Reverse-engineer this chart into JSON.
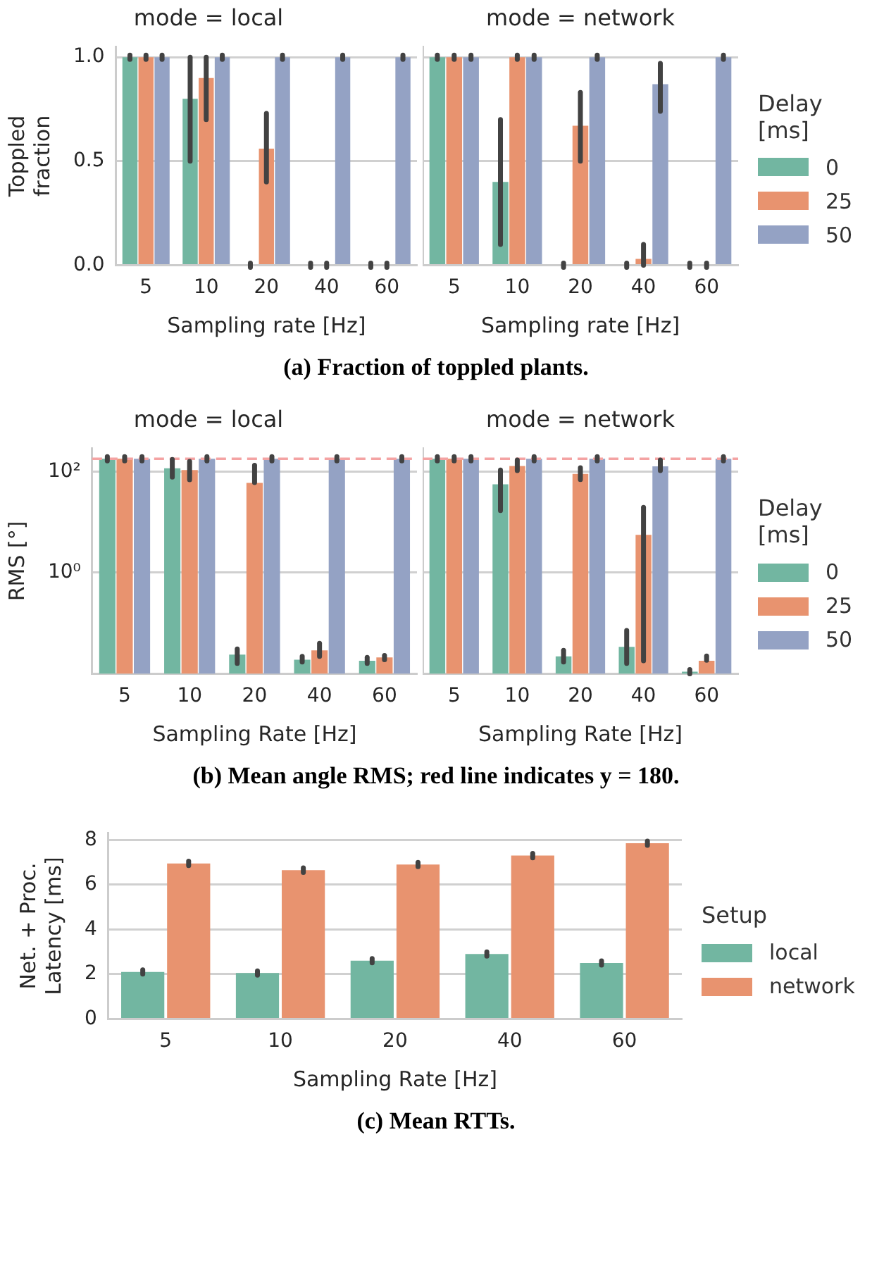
{
  "chart_data": [
    {
      "type": "bar",
      "title": "mode = local",
      "xlabel": "Sampling rate [Hz]",
      "ylabel": "Toppled fraction",
      "categories": [
        "5",
        "10",
        "20",
        "40",
        "60"
      ],
      "ylim": [
        0,
        1.05
      ],
      "yticks": [
        {
          "value": 0,
          "label": "0.0"
        },
        0.5,
        {
          "value": 1,
          "label": "1.0"
        }
      ],
      "grid": "y",
      "series": [
        {
          "color": "#72b6a1",
          "values": [
            1,
            0.8,
            0,
            0,
            0
          ],
          "errors": [
            0,
            [
              0.5,
              1
            ],
            0,
            0,
            0
          ]
        },
        {
          "color": "#e8936f",
          "values": [
            1,
            0.9,
            0.56,
            0,
            0
          ],
          "errors": [
            0,
            [
              0.7,
              1
            ],
            [
              0.4,
              0.73
            ],
            0,
            0
          ]
        },
        {
          "color": "#94a2c4",
          "values": [
            1,
            1,
            1,
            1,
            1
          ],
          "errors": [
            0,
            0,
            0,
            0,
            0
          ]
        }
      ],
      "annotations": [
        "(a) Fraction of toppled plants."
      ]
    },
    {
      "type": "bar",
      "title": "mode = network",
      "xlabel": "Sampling rate [Hz]",
      "categories": [
        "5",
        "10",
        "20",
        "40",
        "60"
      ],
      "ylim": [
        0,
        1.05
      ],
      "yticks": [
        {
          "value": 0,
          "label": null
        },
        {
          "value": 0.5,
          "label": null
        },
        {
          "value": 1,
          "label": null
        }
      ],
      "grid": "y",
      "tick_labels": "x",
      "legend": "right",
      "legend_title": "Delay [ms]",
      "series": [
        {
          "name": "0",
          "color": "#72b6a1",
          "values": [
            1,
            0.4,
            0,
            0,
            0
          ],
          "errors": [
            0,
            [
              0.1,
              0.7
            ],
            0,
            0,
            0
          ]
        },
        {
          "name": "25",
          "color": "#e8936f",
          "values": [
            1,
            1,
            0.67,
            0.03,
            0
          ],
          "errors": [
            0,
            0,
            [
              0.5,
              0.83
            ],
            [
              0,
              0.1
            ],
            0
          ]
        },
        {
          "name": "50",
          "color": "#94a2c4",
          "values": [
            1,
            1,
            1,
            0.87,
            1
          ],
          "errors": [
            0,
            0,
            0,
            [
              0.74,
              0.97
            ],
            0
          ]
        }
      ]
    },
    {
      "type": "bar",
      "title": "mode = local",
      "xlabel": "Sampling Rate [Hz]",
      "ylabel": "RMS [°]",
      "categories": [
        "5",
        "10",
        "20",
        "40",
        "60"
      ],
      "log": "y",
      "ylim": [
        0.01,
        290
      ],
      "yticks": [
        {
          "value": 1,
          "label": "10⁰"
        },
        {
          "value": 100,
          "label": "10²"
        }
      ],
      "grid": "y",
      "ref_lines": [
        {
          "axis": "y",
          "value": 180,
          "color": "#f4a3a3",
          "line_style": "dashed"
        }
      ],
      "series": [
        {
          "color": "#72b6a1",
          "values": [
            180,
            117,
            0.024,
            0.019,
            0.018
          ],
          "errors": [
            0,
            [
              78,
              174
            ],
            [
              0.016,
              0.031
            ],
            [
              0.017,
              0.022
            ],
            [
              0.016,
              0.021
            ]
          ]
        },
        {
          "color": "#e8936f",
          "values": [
            180,
            108,
            60,
            0.029,
            0.021
          ],
          "errors": [
            0,
            [
              69,
              160
            ],
            [
              61,
              134
            ],
            [
              0.022,
              0.04
            ],
            [
              0.019,
              0.023
            ]
          ]
        },
        {
          "color": "#94a2c4",
          "values": [
            180,
            180,
            180,
            180,
            180
          ],
          "errors": [
            0,
            0,
            0,
            0,
            0
          ]
        }
      ],
      "annotations": [
        "(b) Mean angle RMS; red line indicates y = 180."
      ]
    },
    {
      "type": "bar",
      "title": "mode = network",
      "xlabel": "Sampling Rate [Hz]",
      "categories": [
        "5",
        "10",
        "20",
        "40",
        "60"
      ],
      "log": "y",
      "ylim": [
        0.01,
        290
      ],
      "yticks": [
        {
          "value": 1,
          "label": null
        },
        {
          "value": 100,
          "label": null
        }
      ],
      "grid": "y",
      "tick_labels": "x",
      "legend": "right",
      "legend_title": "Delay [ms]",
      "ref_lines": [
        {
          "axis": "y",
          "value": 180,
          "color": "#f4a3a3",
          "line_style": "dashed"
        }
      ],
      "series": [
        {
          "name": "0",
          "color": "#72b6a1",
          "values": [
            180,
            56,
            0.022,
            0.034,
            0.011
          ],
          "errors": [
            0,
            [
              17,
              108
            ],
            [
              0.017,
              0.029
            ],
            [
              0.016,
              0.072
            ],
            0
          ]
        },
        {
          "name": "25",
          "color": "#e8936f",
          "values": [
            180,
            130,
            90,
            5.6,
            0.018
          ],
          "errors": [
            0,
            [
              105,
              170
            ],
            [
              70,
              120
            ],
            [
              0.018,
              19.6
            ],
            [
              0.019,
              0.022
            ]
          ]
        },
        {
          "name": "50",
          "color": "#94a2c4",
          "values": [
            180,
            180,
            180,
            127,
            180
          ],
          "errors": [
            0,
            0,
            0,
            [
              105,
              170
            ],
            0
          ]
        }
      ]
    },
    {
      "type": "bar",
      "xlabel": "Sampling Rate [Hz]",
      "ylabel": "Net. + Proc. Latency [ms]",
      "categories": [
        "5",
        "10",
        "20",
        "40",
        "60"
      ],
      "ylim": [
        0,
        8.3
      ],
      "yticks": [
        0,
        2,
        4,
        6,
        8
      ],
      "grid": "y",
      "legend": "right",
      "legend_title": "Setup",
      "series": [
        {
          "name": "local",
          "color": "#72b6a1",
          "values": [
            2.1,
            2.05,
            2.6,
            2.9,
            2.5
          ],
          "errors": [
            0.04,
            0.04,
            0.04,
            0.04,
            0.04
          ]
        },
        {
          "name": "network",
          "color": "#e8936f",
          "values": [
            6.95,
            6.65,
            6.9,
            7.3,
            7.85
          ],
          "errors": [
            0.1,
            0.1,
            0.08,
            0.1,
            0.05
          ]
        }
      ],
      "annotations": [
        "(c) Mean RTTs."
      ]
    }
  ]
}
